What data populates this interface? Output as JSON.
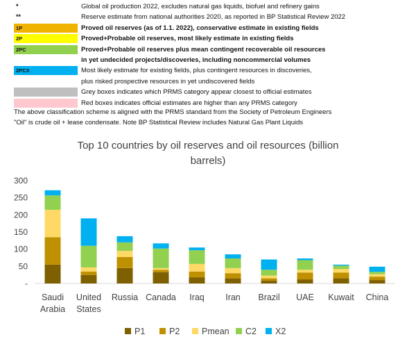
{
  "notes_top": [
    {
      "marker": "*",
      "text": "Global oil production 2022, excludes natural gas liquids, biofuel and refinery gains"
    },
    {
      "marker": "**",
      "text": "Reserve estimate from national authorities 2020, as reported in BP Statistical Review 2022"
    }
  ],
  "categories_legend": [
    {
      "code": "1P",
      "color": "#f0b400",
      "text": "Proved oil reserves (as of 1.1. 2022), conservative estimate in existing fields",
      "bold": true
    },
    {
      "code": "2P",
      "color": "#ffff00",
      "text": "Proved+Probable oil reserves, most likely estimate in existing fields",
      "bold": true
    },
    {
      "code": "2PC",
      "color": "#92d050",
      "text": "Proved+Probable oil reserves plus mean contingent recoverable oil resources",
      "bold": true
    },
    {
      "code": "",
      "color": "#ffffff",
      "text": "in yet undecided projects/discoveries, including noncommercial volumes",
      "bold": true
    },
    {
      "code": "2PCX",
      "color": "#00b0f0",
      "text": "Most likely estimate for existing fields, plus contingent resources in discoveries,",
      "bold": false
    },
    {
      "code": "",
      "color": "#ffffff",
      "text": "plus risked prospective resources in yet undiscovered fields",
      "bold": false
    },
    {
      "code": "",
      "color": "#bfbfbf",
      "text": "Grey boxes indicates which PRMS category appear closest to official estimates",
      "bold": false
    },
    {
      "code": "",
      "color": "#ffc7ce",
      "text": "Red boxes indicates official estimates are higher than any PRMS category",
      "bold": false
    }
  ],
  "notes_bottom": [
    "The above classification scheme is aligned with the PRMS standard from the Society of Petroleum Engineers",
    "\"Oil\" is crude oil + lease condensate. Note BP Statistical Review includes Natural Gas Plant Liquids"
  ],
  "chart_data": {
    "type": "bar",
    "stacked": true,
    "title": "Top 10 countries by oil reserves and oil resources (billion barrels)",
    "title_lines": [
      "Top 10 countries by oil reserves  and oil resources  (billion",
      "barrels)"
    ],
    "categories": [
      "Saudi Arabia",
      "United States",
      "Russia",
      "Canada",
      "Iraq",
      "Iran",
      "Brazil",
      "UAE",
      "Kuwait",
      "China"
    ],
    "category_lines": [
      [
        "Saudi",
        "Arabia"
      ],
      [
        "United",
        "States"
      ],
      [
        "Russia"
      ],
      [
        "Canada"
      ],
      [
        "Iraq"
      ],
      [
        "Iran"
      ],
      [
        "Brazil"
      ],
      [
        "UAE"
      ],
      [
        "Kuwait"
      ],
      [
        "China"
      ]
    ],
    "series": [
      {
        "name": "P1",
        "color": "#7f6000",
        "values": [
          55,
          25,
          45,
          33,
          18,
          15,
          8,
          12,
          15,
          10
        ]
      },
      {
        "name": "P2",
        "color": "#bf9000",
        "values": [
          80,
          10,
          32,
          7,
          17,
          15,
          7,
          20,
          17,
          10
        ]
      },
      {
        "name": "Pmean",
        "color": "#ffd966",
        "values": [
          80,
          12,
          18,
          5,
          22,
          15,
          8,
          8,
          10,
          7
        ]
      },
      {
        "name": "C2",
        "color": "#92d050",
        "values": [
          42,
          63,
          25,
          57,
          40,
          28,
          17,
          28,
          10,
          7
        ]
      },
      {
        "name": "X2",
        "color": "#00b0f0",
        "values": [
          15,
          80,
          18,
          15,
          8,
          12,
          30,
          5,
          3,
          15
        ]
      }
    ],
    "yticks": [
      "300",
      "250",
      "200",
      "150",
      "100",
      "50",
      "-"
    ],
    "ylim": [
      0,
      300
    ],
    "xlabel": "",
    "ylabel": "",
    "legend_position": "bottom"
  }
}
